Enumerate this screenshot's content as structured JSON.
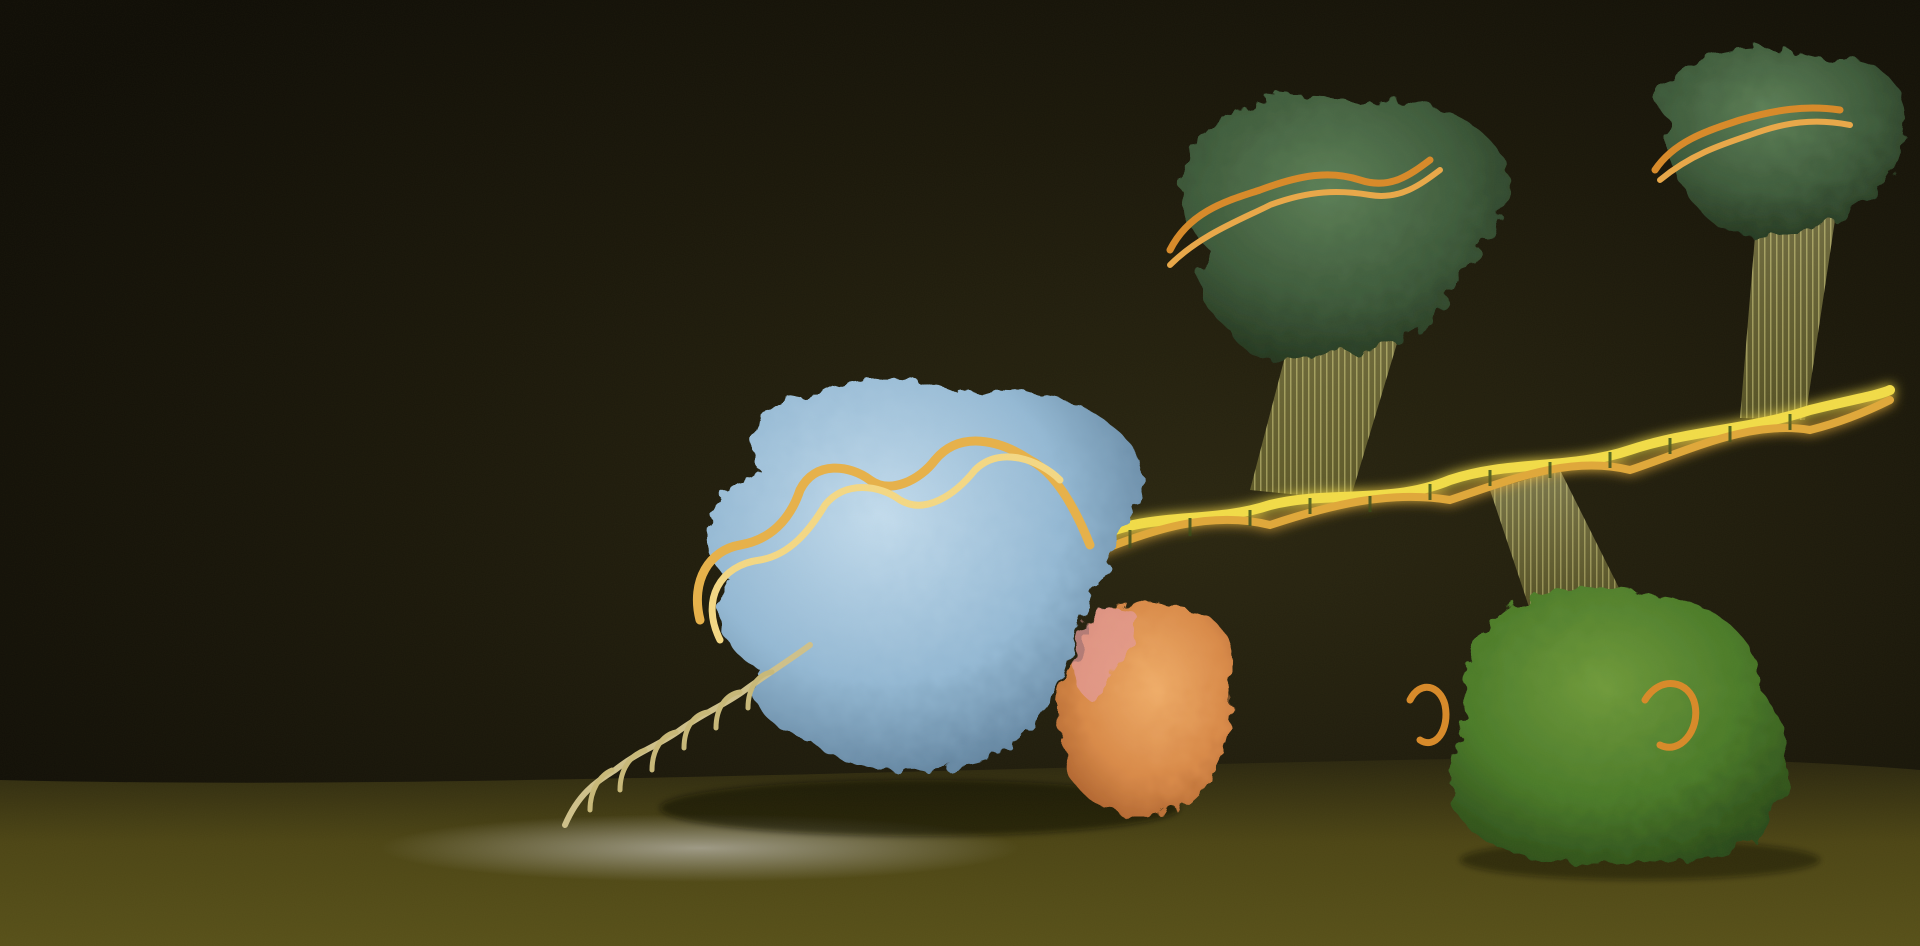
{
  "scene": {
    "subjects": [
      {
        "name": "rna-polymerase",
        "color": "#9cc1dc"
      },
      {
        "name": "pink-orange-protein",
        "color": "#d98a5a"
      },
      {
        "name": "green-protein-floor",
        "color": "#3e6b26"
      },
      {
        "name": "green-protein-upper-left",
        "color": "#3b5a3a"
      },
      {
        "name": "green-protein-upper-right",
        "color": "#3f6035"
      }
    ],
    "palette": {
      "background": "#15120a",
      "floor": "#4a4316",
      "dna_backbone": "#e8b24a",
      "dna_glow": "#f2e35a",
      "beam": "#f3ef9a",
      "floor_highlight": "#8c8a80"
    }
  }
}
